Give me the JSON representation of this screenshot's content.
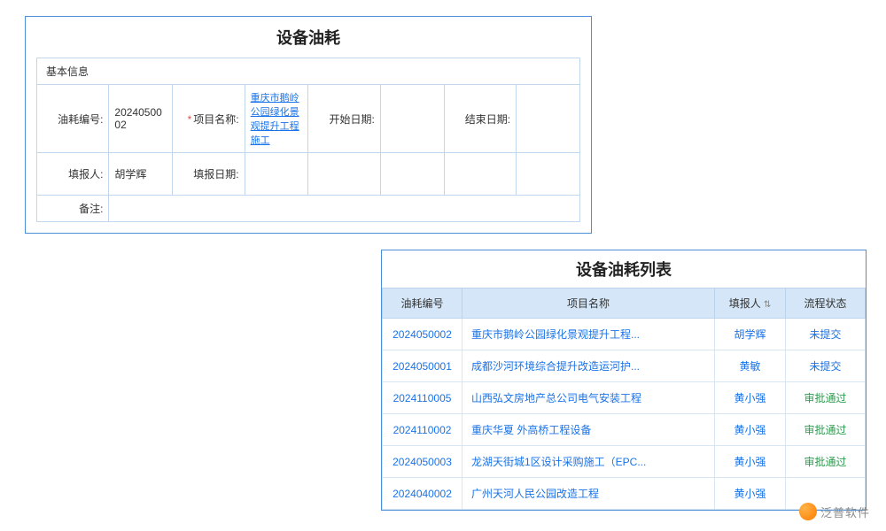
{
  "colors": {
    "panel_border": "#4a90d9",
    "cell_border": "#c3d7ec",
    "list_header_bg": "#d4e6f7",
    "link_color": "#1a73e8",
    "approved_color": "#2e9b4f",
    "required_color": "#d9534f"
  },
  "form": {
    "title": "设备油耗",
    "section_label": "基本信息",
    "fields": {
      "fuel_id": {
        "label": "油耗编号:",
        "value": "2024050002"
      },
      "project": {
        "label": "项目名称:",
        "required": true,
        "value": "重庆市鹅岭公园绿化景观提升工程施工"
      },
      "start_date": {
        "label": "开始日期:",
        "value": ""
      },
      "end_date": {
        "label": "结束日期:",
        "value": ""
      },
      "reporter": {
        "label": "填报人:",
        "value": "胡学辉"
      },
      "report_date": {
        "label": "填报日期:",
        "value": ""
      },
      "remark": {
        "label": "备注:",
        "value": ""
      }
    }
  },
  "list": {
    "title": "设备油耗列表",
    "columns": {
      "id": "油耗编号",
      "project": "项目名称",
      "reporter": "填报人",
      "status": "流程状态"
    },
    "rows": [
      {
        "id": "2024050002",
        "project": "重庆市鹅岭公园绿化景观提升工程...",
        "reporter": "胡学辉",
        "status": "未提交",
        "status_class": "status-pending"
      },
      {
        "id": "2024050001",
        "project": "成都沙河环境综合提升改造运河护...",
        "reporter": "黄敏",
        "status": "未提交",
        "status_class": "status-pending"
      },
      {
        "id": "2024110005",
        "project": "山西弘文房地产总公司电气安装工程",
        "reporter": "黄小强",
        "status": "审批通过",
        "status_class": "status-approved"
      },
      {
        "id": "2024110002",
        "project": "重庆华夏 外高桥工程设备",
        "reporter": "黄小强",
        "status": "审批通过",
        "status_class": "status-approved"
      },
      {
        "id": "2024050003",
        "project": "龙湖天街城1区设计采购施工（EPC...",
        "reporter": "黄小强",
        "status": "审批通过",
        "status_class": "status-approved"
      },
      {
        "id": "2024040002",
        "project": "广州天河人民公园改造工程",
        "reporter": "黄小强",
        "status": "",
        "status_class": ""
      }
    ]
  },
  "watermark": {
    "text": "泛普软件",
    "url": "www.fanpusoft.com"
  }
}
